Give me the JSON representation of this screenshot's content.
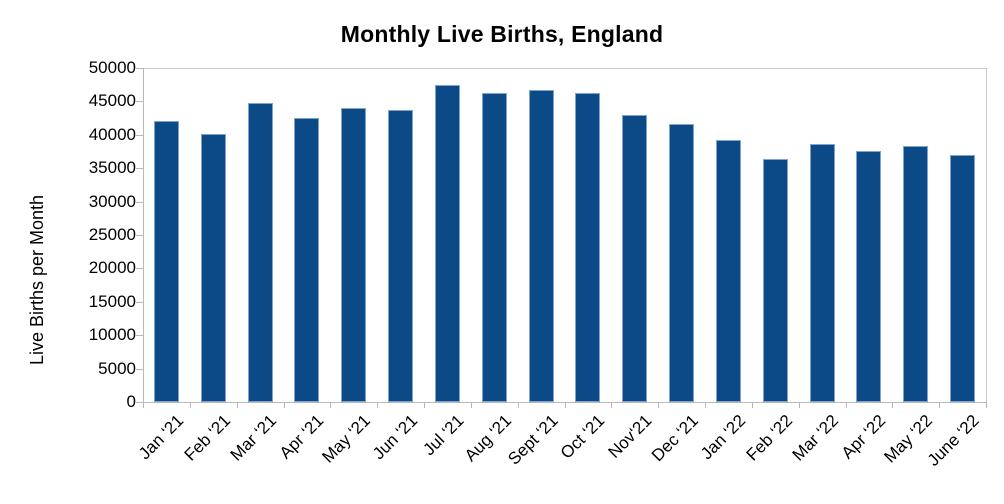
{
  "page": {
    "background_color": "#ffffff"
  },
  "chart_data": {
    "type": "bar",
    "title": "Monthly Live Births, England",
    "xlabel": "",
    "ylabel": "Live Births per Month",
    "categories": [
      "Jan ‘21",
      "Feb ‘21",
      "Mar ‘21",
      "Apr ‘21",
      "May ‘21",
      "Jun ‘21",
      "Jul ‘21",
      "Aug ‘21",
      "Sept ‘21",
      "Oct ‘21",
      "Nov‘21",
      "Dec ‘21",
      "Jan ‘22",
      "Feb ‘22",
      "Mar ‘22",
      "Apr ‘22",
      "May ‘22",
      "June ‘22"
    ],
    "values": [
      42000,
      40100,
      44700,
      42500,
      44000,
      43700,
      47500,
      46200,
      46700,
      46200,
      42900,
      41600,
      39300,
      36400,
      38700,
      37600,
      38400,
      37000
    ],
    "ylim": [
      0,
      50000
    ],
    "ytick_step": 5000,
    "ytick_labels": [
      "0",
      "5000",
      "10000",
      "15000",
      "20000",
      "25000",
      "30000",
      "35000",
      "40000",
      "45000",
      "50000"
    ],
    "grid": false,
    "legend": "none",
    "bar_color": "#0b4a87",
    "bar_border_color": "#7fa4c9",
    "axis_color": "#b8b8b8",
    "text_color": "#000000"
  }
}
